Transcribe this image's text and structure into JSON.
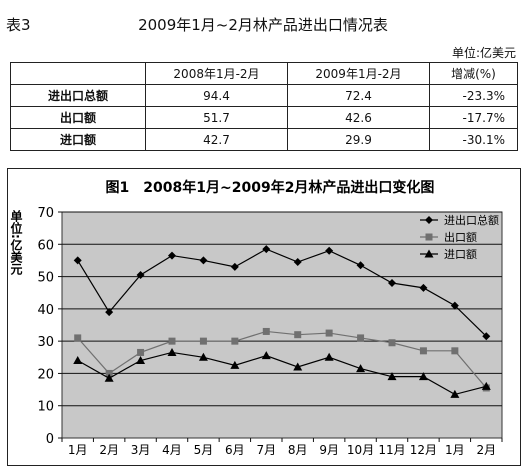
{
  "table": {
    "label": "表3",
    "title": "2009年1月~2月林产品进出口情况表",
    "unit": "单位:亿美元",
    "headers": [
      "",
      "2008年1月-2月",
      "2009年1月-2月",
      "增减(%)"
    ],
    "rows": [
      {
        "label": "进出口总额",
        "v2008": "94.4",
        "v2009": "72.4",
        "change": "-23.3%"
      },
      {
        "label": "出口额",
        "v2008": "51.7",
        "v2009": "42.6",
        "change": "-17.7%"
      },
      {
        "label": "进口额",
        "v2008": "42.7",
        "v2009": "29.9",
        "change": "-30.1%"
      }
    ]
  },
  "chart_data": {
    "type": "line",
    "title": "图1　2008年1月~2009年2月林产品进出口变化图",
    "ylabel": "单位:亿美元",
    "xlabel": "",
    "categories": [
      "1月",
      "2月",
      "3月",
      "4月",
      "5月",
      "6月",
      "7月",
      "8月",
      "9月",
      "10月",
      "11月",
      "12月",
      "1月",
      "2月"
    ],
    "ylim": [
      0,
      70
    ],
    "yticks": [
      0,
      10,
      20,
      30,
      40,
      50,
      60,
      70
    ],
    "grid": true,
    "legend_position": "top-right",
    "plot_background": "#c8c8c8",
    "series": [
      {
        "name": "进出口总额",
        "marker": "diamond",
        "color": "#000000",
        "values": [
          55,
          39,
          50.5,
          56.5,
          55,
          53,
          58.5,
          54.5,
          58,
          53.5,
          48,
          46.5,
          41,
          31.5
        ]
      },
      {
        "name": "出口额",
        "marker": "square",
        "color": "#707070",
        "values": [
          31,
          20,
          26.5,
          30,
          30,
          30,
          33,
          32,
          32.5,
          31,
          29.5,
          27,
          27,
          15.5
        ]
      },
      {
        "name": "进口额",
        "marker": "triangle",
        "color": "#000000",
        "values": [
          24,
          18.5,
          24,
          26.5,
          25,
          22.5,
          25.5,
          22,
          25,
          21.5,
          19,
          19,
          13.5,
          16
        ]
      }
    ]
  }
}
